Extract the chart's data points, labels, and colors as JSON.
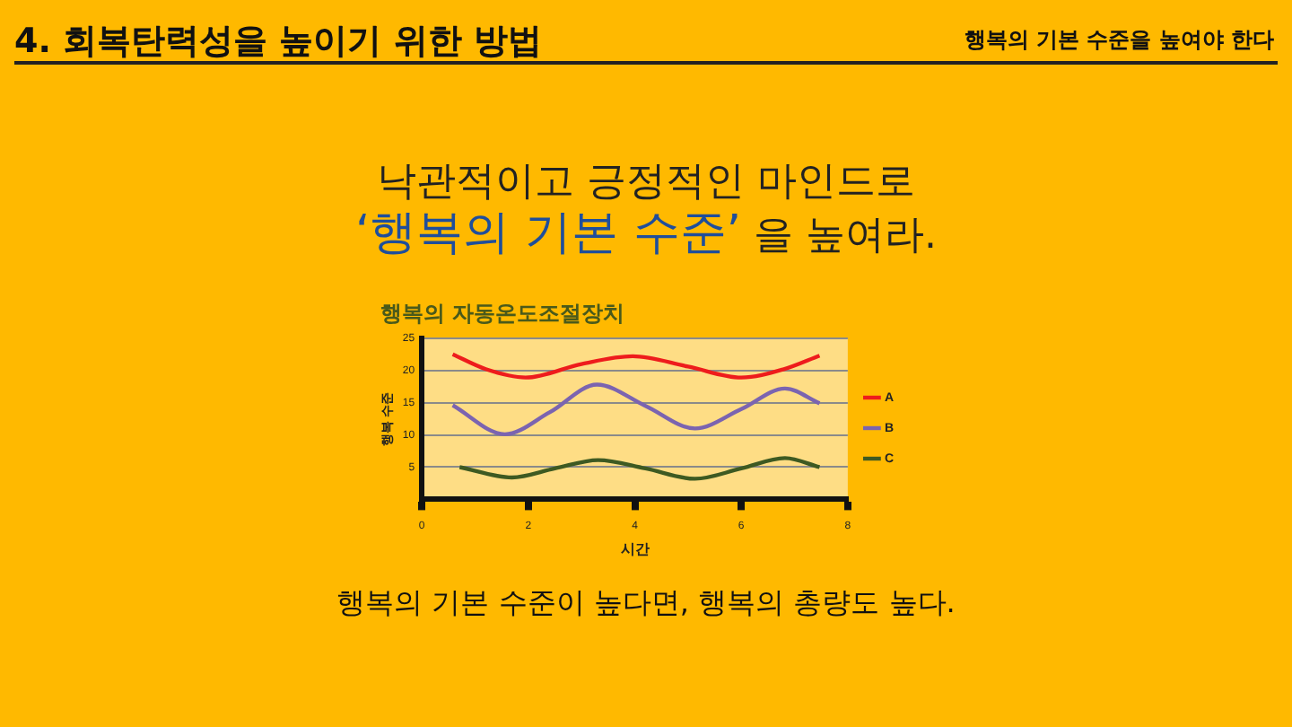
{
  "chart_data": {
    "type": "line",
    "title": "행복의 자동온도조절장치",
    "xlabel": "시간",
    "ylabel": "행복 수준",
    "annotations": [
      "4. 회복탄력성을 높이기 위한 방법",
      "행복의 기본 수준을 높여야 한다",
      "낙관적이고 긍정적인 마인드로",
      "‘행복의 기본 수준’",
      "을 높여라.",
      "행복의 기본 수준이 높다면, 행복의 총량도 높다."
    ],
    "xlim": [
      0,
      8
    ],
    "xticks": [
      0,
      2,
      4,
      6,
      8
    ],
    "ylim": [
      0,
      25
    ],
    "yticks": [
      5,
      10,
      15,
      20,
      25
    ],
    "grid": "y",
    "legend": "right",
    "marker": "none",
    "series": [
      {
        "name": "A",
        "color": "#ee1c1c",
        "x": [
          0.58,
          1.2,
          1.95,
          3.0,
          3.96,
          5.0,
          6.0,
          6.8,
          7.47
        ],
        "values": [
          22.5,
          20.2,
          18.9,
          21.0,
          22.2,
          20.6,
          18.9,
          20.2,
          22.3
        ]
      },
      {
        "name": "B",
        "color": "#7b64b0",
        "x": [
          0.58,
          1.56,
          2.4,
          3.29,
          4.2,
          5.13,
          6.0,
          6.82,
          7.47
        ],
        "values": [
          14.6,
          10.1,
          13.5,
          17.8,
          14.5,
          11.0,
          14.0,
          17.2,
          14.9
        ]
      },
      {
        "name": "C",
        "color": "#3e5a22",
        "x": [
          0.71,
          1.69,
          2.5,
          3.31,
          4.2,
          5.13,
          6.0,
          6.82,
          7.47
        ],
        "values": [
          5.0,
          3.4,
          4.8,
          6.1,
          4.8,
          3.2,
          4.8,
          6.4,
          5.0
        ]
      }
    ]
  }
}
